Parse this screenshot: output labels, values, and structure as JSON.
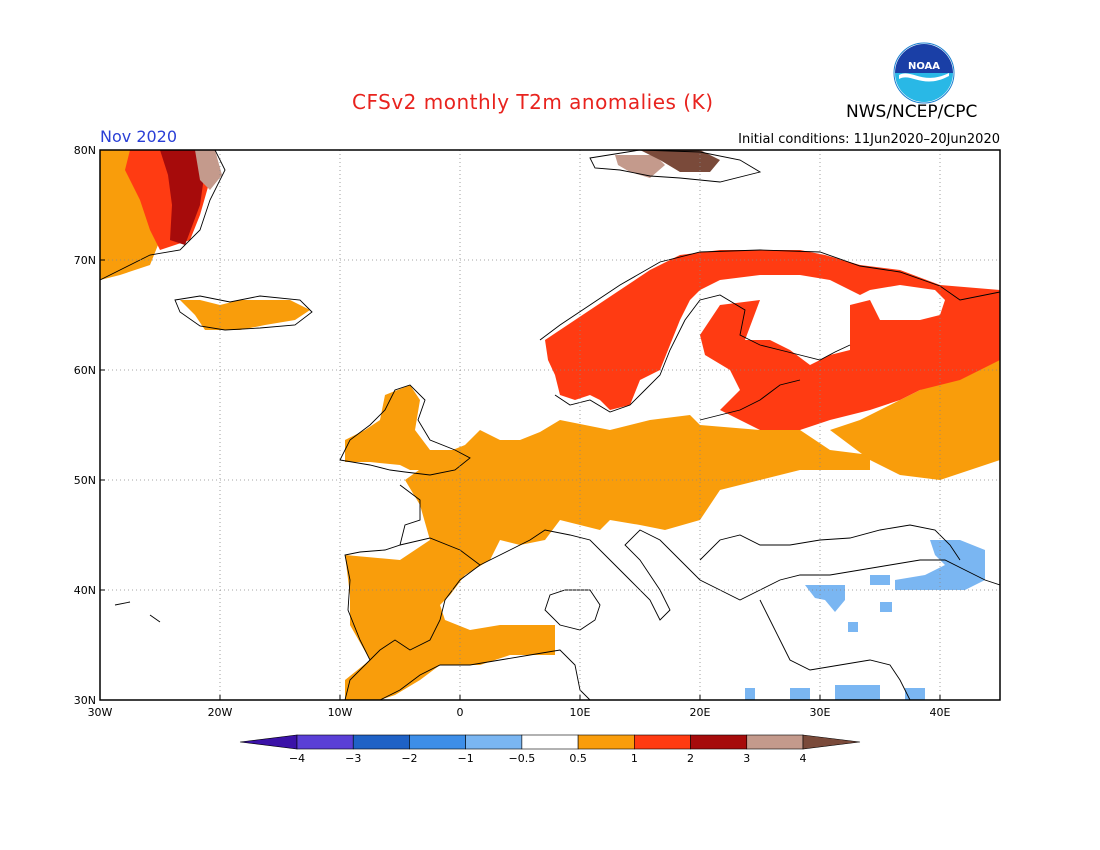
{
  "title": "CFSv2 monthly T2m anomalies (K)",
  "agency": "NWS/NCEP/CPC",
  "logo_text": "NOAA",
  "forecast_month": "Nov 2020",
  "initial_conditions": "Initial conditions: 11Jun2020–20Jun2020",
  "map": {
    "lon_range": [
      -30,
      45
    ],
    "lat_range": [
      30,
      80
    ],
    "lon_ticks": [
      {
        "lon": -30,
        "label": "30W"
      },
      {
        "lon": -20,
        "label": "20W"
      },
      {
        "lon": -10,
        "label": "10W"
      },
      {
        "lon": 0,
        "label": "0"
      },
      {
        "lon": 10,
        "label": "10E"
      },
      {
        "lon": 20,
        "label": "20E"
      },
      {
        "lon": 30,
        "label": "30E"
      },
      {
        "lon": 40,
        "label": "40E"
      }
    ],
    "lat_ticks": [
      {
        "lat": 30,
        "label": "30N"
      },
      {
        "lat": 40,
        "label": "40N"
      },
      {
        "lat": 50,
        "label": "50N"
      },
      {
        "lat": 60,
        "label": "60N"
      },
      {
        "lat": 70,
        "label": "70N"
      },
      {
        "lat": 80,
        "label": "80N"
      }
    ],
    "gridlines": true
  },
  "colorbar": {
    "bins": [
      {
        "range": "< -4",
        "color": "#3b12a8"
      },
      {
        "range": "-4 to -3",
        "color": "#5a3fd6"
      },
      {
        "range": "-3 to -2",
        "color": "#1f62c6"
      },
      {
        "range": "-2 to -1",
        "color": "#3d8ee8"
      },
      {
        "range": "-1 to -0.5",
        "color": "#7ab6f2"
      },
      {
        "range": "-0.5 to 0.5",
        "color": "#ffffff"
      },
      {
        "range": "0.5 to 1",
        "color": "#f99d0b"
      },
      {
        "range": "1 to 2",
        "color": "#ff3b12"
      },
      {
        "range": "2 to 3",
        "color": "#a60b0b"
      },
      {
        "range": "3 to 4",
        "color": "#c49a8c"
      },
      {
        "range": "> 4",
        "color": "#7a4a3a"
      }
    ],
    "tick_labels": [
      "−4",
      "−3",
      "−2",
      "−1",
      "−0.5",
      "0.5",
      "1",
      "2",
      "3",
      "4"
    ]
  },
  "regions": [
    {
      "name": "Iberia and western France",
      "anomaly_bin": "0.5 to 1"
    },
    {
      "name": "Central Europe",
      "anomaly_bin": "0.5 to 1"
    },
    {
      "name": "Scandinavia and western Russia",
      "anomaly_bin": "1 to 2"
    },
    {
      "name": "Greenland east coast",
      "anomaly_bin": "2 to 3"
    },
    {
      "name": "Turkey and Black Sea region (patches)",
      "anomaly_bin": "-1 to -0.5"
    },
    {
      "name": "Balkans and Mediterranean",
      "anomaly_bin": "-0.5 to 0.5"
    }
  ]
}
